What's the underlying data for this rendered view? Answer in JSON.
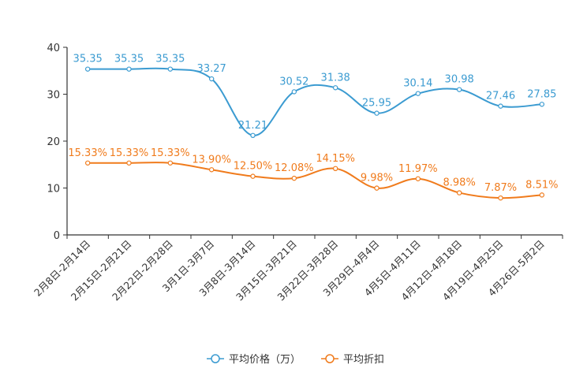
{
  "chart_data": {
    "type": "line",
    "categories": [
      "2月8日-2月14日",
      "2月15日-2月21日",
      "2月22日-2月28日",
      "3月1日-3月7日",
      "3月8日-3月14日",
      "3月15日-3月21日",
      "3月22日-3月28日",
      "3月29日-4月4日",
      "4月5日-4月11日",
      "4月12日-4月18日",
      "4月19日-4月25日",
      "4月26日-5月2日"
    ],
    "ylim": [
      0,
      40
    ],
    "yticks": [
      0,
      10,
      20,
      30,
      40
    ],
    "series": [
      {
        "name": "平均价格（万）",
        "color": "#3b9bd1",
        "values": [
          35.35,
          35.35,
          35.35,
          33.27,
          21.21,
          30.52,
          31.38,
          25.95,
          30.14,
          30.98,
          27.46,
          27.85
        ],
        "labels": [
          "35.35",
          "35.35",
          "35.35",
          "33.27",
          "21.21",
          "30.52",
          "31.38",
          "25.95",
          "30.14",
          "30.98",
          "27.46",
          "27.85"
        ]
      },
      {
        "name": "平均折扣",
        "color": "#f07b1c",
        "values": [
          15.33,
          15.33,
          15.33,
          13.9,
          12.5,
          12.08,
          14.15,
          9.98,
          11.97,
          8.98,
          7.87,
          8.51
        ],
        "labels": [
          "15.33%",
          "15.33%",
          "15.33%",
          "13.90%",
          "12.50%",
          "12.08%",
          "14.15%",
          "9.98%",
          "11.97%",
          "8.98%",
          "7.87%",
          "8.51%"
        ]
      }
    ],
    "legend": "bottom-center"
  }
}
